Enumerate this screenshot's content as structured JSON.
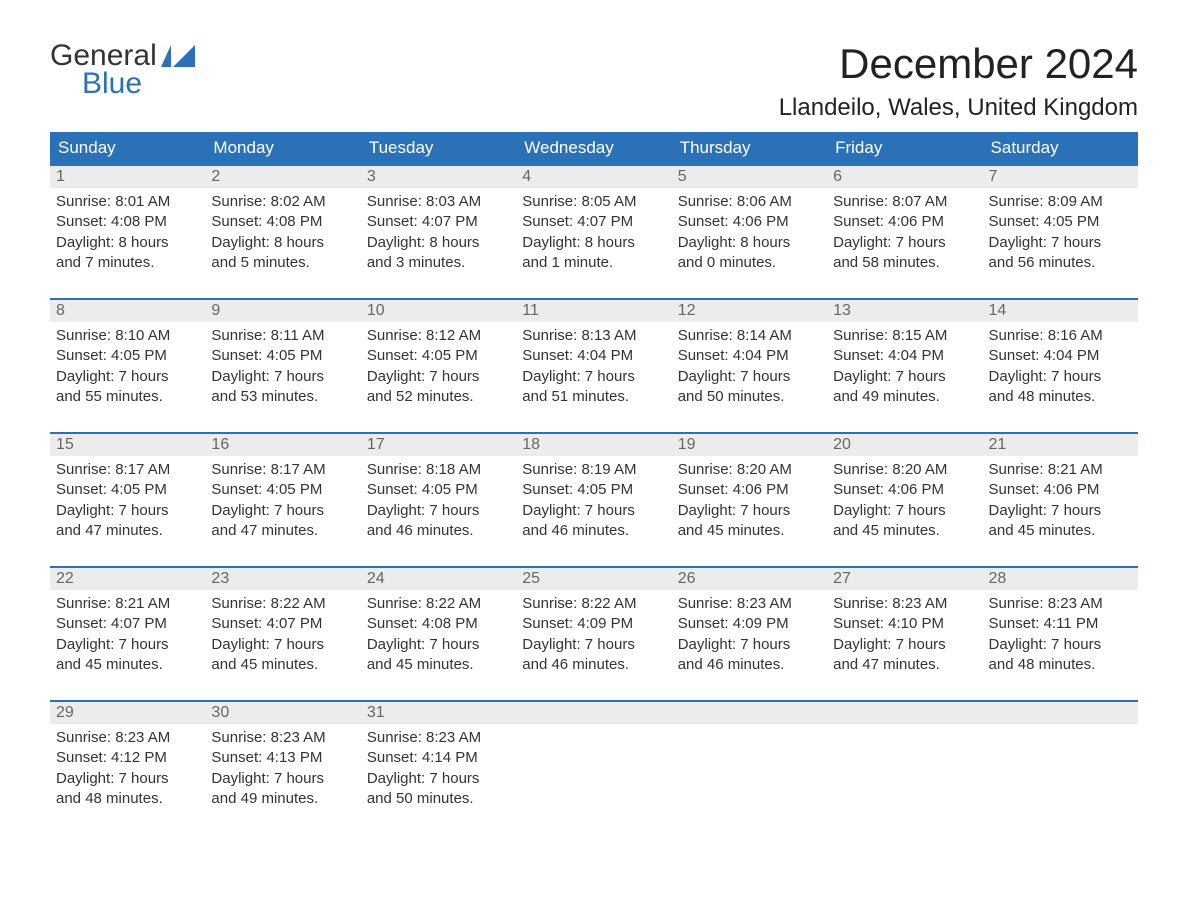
{
  "logo": {
    "top": "General",
    "bottom": "Blue"
  },
  "title": "December 2024",
  "location": "Llandeilo, Wales, United Kingdom",
  "colors": {
    "header_bg": "#2a71b8",
    "header_text": "#ffffff",
    "daynum_bg": "#ececec",
    "daynum_text": "#666666",
    "border": "#2a71b8",
    "body_text": "#333333",
    "logo_blue": "#2a71b8"
  },
  "dow": [
    "Sunday",
    "Monday",
    "Tuesday",
    "Wednesday",
    "Thursday",
    "Friday",
    "Saturday"
  ],
  "weeks": [
    [
      {
        "n": "1",
        "sr": "Sunrise: 8:01 AM",
        "ss": "Sunset: 4:08 PM",
        "d1": "Daylight: 8 hours",
        "d2": "and 7 minutes."
      },
      {
        "n": "2",
        "sr": "Sunrise: 8:02 AM",
        "ss": "Sunset: 4:08 PM",
        "d1": "Daylight: 8 hours",
        "d2": "and 5 minutes."
      },
      {
        "n": "3",
        "sr": "Sunrise: 8:03 AM",
        "ss": "Sunset: 4:07 PM",
        "d1": "Daylight: 8 hours",
        "d2": "and 3 minutes."
      },
      {
        "n": "4",
        "sr": "Sunrise: 8:05 AM",
        "ss": "Sunset: 4:07 PM",
        "d1": "Daylight: 8 hours",
        "d2": "and 1 minute."
      },
      {
        "n": "5",
        "sr": "Sunrise: 8:06 AM",
        "ss": "Sunset: 4:06 PM",
        "d1": "Daylight: 8 hours",
        "d2": "and 0 minutes."
      },
      {
        "n": "6",
        "sr": "Sunrise: 8:07 AM",
        "ss": "Sunset: 4:06 PM",
        "d1": "Daylight: 7 hours",
        "d2": "and 58 minutes."
      },
      {
        "n": "7",
        "sr": "Sunrise: 8:09 AM",
        "ss": "Sunset: 4:05 PM",
        "d1": "Daylight: 7 hours",
        "d2": "and 56 minutes."
      }
    ],
    [
      {
        "n": "8",
        "sr": "Sunrise: 8:10 AM",
        "ss": "Sunset: 4:05 PM",
        "d1": "Daylight: 7 hours",
        "d2": "and 55 minutes."
      },
      {
        "n": "9",
        "sr": "Sunrise: 8:11 AM",
        "ss": "Sunset: 4:05 PM",
        "d1": "Daylight: 7 hours",
        "d2": "and 53 minutes."
      },
      {
        "n": "10",
        "sr": "Sunrise: 8:12 AM",
        "ss": "Sunset: 4:05 PM",
        "d1": "Daylight: 7 hours",
        "d2": "and 52 minutes."
      },
      {
        "n": "11",
        "sr": "Sunrise: 8:13 AM",
        "ss": "Sunset: 4:04 PM",
        "d1": "Daylight: 7 hours",
        "d2": "and 51 minutes."
      },
      {
        "n": "12",
        "sr": "Sunrise: 8:14 AM",
        "ss": "Sunset: 4:04 PM",
        "d1": "Daylight: 7 hours",
        "d2": "and 50 minutes."
      },
      {
        "n": "13",
        "sr": "Sunrise: 8:15 AM",
        "ss": "Sunset: 4:04 PM",
        "d1": "Daylight: 7 hours",
        "d2": "and 49 minutes."
      },
      {
        "n": "14",
        "sr": "Sunrise: 8:16 AM",
        "ss": "Sunset: 4:04 PM",
        "d1": "Daylight: 7 hours",
        "d2": "and 48 minutes."
      }
    ],
    [
      {
        "n": "15",
        "sr": "Sunrise: 8:17 AM",
        "ss": "Sunset: 4:05 PM",
        "d1": "Daylight: 7 hours",
        "d2": "and 47 minutes."
      },
      {
        "n": "16",
        "sr": "Sunrise: 8:17 AM",
        "ss": "Sunset: 4:05 PM",
        "d1": "Daylight: 7 hours",
        "d2": "and 47 minutes."
      },
      {
        "n": "17",
        "sr": "Sunrise: 8:18 AM",
        "ss": "Sunset: 4:05 PM",
        "d1": "Daylight: 7 hours",
        "d2": "and 46 minutes."
      },
      {
        "n": "18",
        "sr": "Sunrise: 8:19 AM",
        "ss": "Sunset: 4:05 PM",
        "d1": "Daylight: 7 hours",
        "d2": "and 46 minutes."
      },
      {
        "n": "19",
        "sr": "Sunrise: 8:20 AM",
        "ss": "Sunset: 4:06 PM",
        "d1": "Daylight: 7 hours",
        "d2": "and 45 minutes."
      },
      {
        "n": "20",
        "sr": "Sunrise: 8:20 AM",
        "ss": "Sunset: 4:06 PM",
        "d1": "Daylight: 7 hours",
        "d2": "and 45 minutes."
      },
      {
        "n": "21",
        "sr": "Sunrise: 8:21 AM",
        "ss": "Sunset: 4:06 PM",
        "d1": "Daylight: 7 hours",
        "d2": "and 45 minutes."
      }
    ],
    [
      {
        "n": "22",
        "sr": "Sunrise: 8:21 AM",
        "ss": "Sunset: 4:07 PM",
        "d1": "Daylight: 7 hours",
        "d2": "and 45 minutes."
      },
      {
        "n": "23",
        "sr": "Sunrise: 8:22 AM",
        "ss": "Sunset: 4:07 PM",
        "d1": "Daylight: 7 hours",
        "d2": "and 45 minutes."
      },
      {
        "n": "24",
        "sr": "Sunrise: 8:22 AM",
        "ss": "Sunset: 4:08 PM",
        "d1": "Daylight: 7 hours",
        "d2": "and 45 minutes."
      },
      {
        "n": "25",
        "sr": "Sunrise: 8:22 AM",
        "ss": "Sunset: 4:09 PM",
        "d1": "Daylight: 7 hours",
        "d2": "and 46 minutes."
      },
      {
        "n": "26",
        "sr": "Sunrise: 8:23 AM",
        "ss": "Sunset: 4:09 PM",
        "d1": "Daylight: 7 hours",
        "d2": "and 46 minutes."
      },
      {
        "n": "27",
        "sr": "Sunrise: 8:23 AM",
        "ss": "Sunset: 4:10 PM",
        "d1": "Daylight: 7 hours",
        "d2": "and 47 minutes."
      },
      {
        "n": "28",
        "sr": "Sunrise: 8:23 AM",
        "ss": "Sunset: 4:11 PM",
        "d1": "Daylight: 7 hours",
        "d2": "and 48 minutes."
      }
    ],
    [
      {
        "n": "29",
        "sr": "Sunrise: 8:23 AM",
        "ss": "Sunset: 4:12 PM",
        "d1": "Daylight: 7 hours",
        "d2": "and 48 minutes."
      },
      {
        "n": "30",
        "sr": "Sunrise: 8:23 AM",
        "ss": "Sunset: 4:13 PM",
        "d1": "Daylight: 7 hours",
        "d2": "and 49 minutes."
      },
      {
        "n": "31",
        "sr": "Sunrise: 8:23 AM",
        "ss": "Sunset: 4:14 PM",
        "d1": "Daylight: 7 hours",
        "d2": "and 50 minutes."
      },
      null,
      null,
      null,
      null
    ]
  ]
}
